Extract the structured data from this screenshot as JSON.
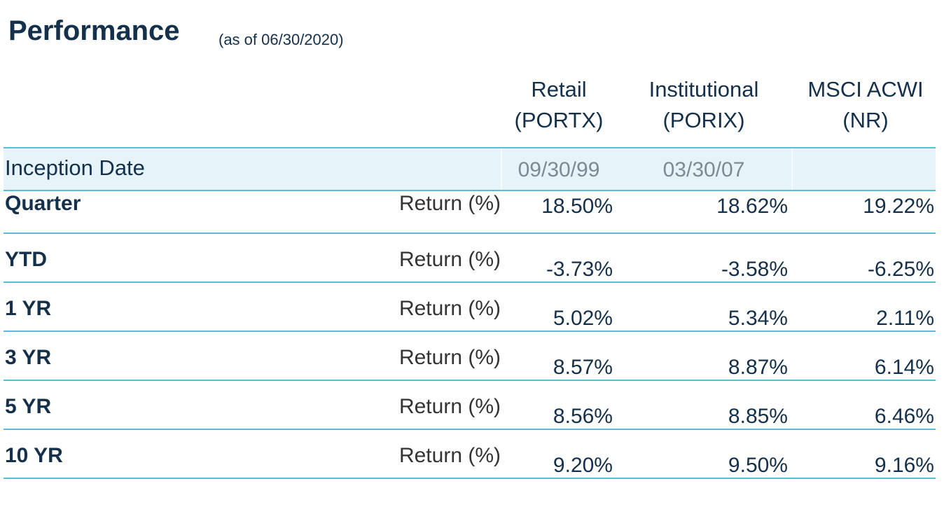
{
  "header": {
    "title": "Performance",
    "subtitle": "(as of 06/30/2020)"
  },
  "table": {
    "columns": [
      [
        "Retail",
        "(PORTX)"
      ],
      [
        "Institutional",
        "(PORIX)"
      ],
      [
        "MSCI ACWI",
        "(NR)"
      ]
    ],
    "inception": {
      "label": "Inception Date",
      "values": [
        "09/30/99",
        "03/30/07"
      ]
    },
    "rows": [
      {
        "label": "Quarter",
        "measure": "Return (%)",
        "values": [
          "18.50%",
          "18.62%",
          "19.22%"
        ]
      },
      {
        "label": "YTD",
        "measure": "Return (%)",
        "values": [
          "-3.73%",
          "-3.58%",
          "-6.25%"
        ]
      },
      {
        "label": "1 YR",
        "measure": "Return (%)",
        "values": [
          "5.02%",
          "5.34%",
          "2.11%"
        ]
      },
      {
        "label": "3 YR",
        "measure": "Return (%)",
        "values": [
          "8.57%",
          "8.87%",
          "6.14%"
        ]
      },
      {
        "label": "5 YR",
        "measure": "Return (%)",
        "values": [
          "8.56%",
          "8.85%",
          "6.46%"
        ]
      },
      {
        "label": "10 YR",
        "measure": "Return (%)",
        "values": [
          "9.20%",
          "9.50%",
          "9.16%"
        ]
      }
    ]
  }
}
